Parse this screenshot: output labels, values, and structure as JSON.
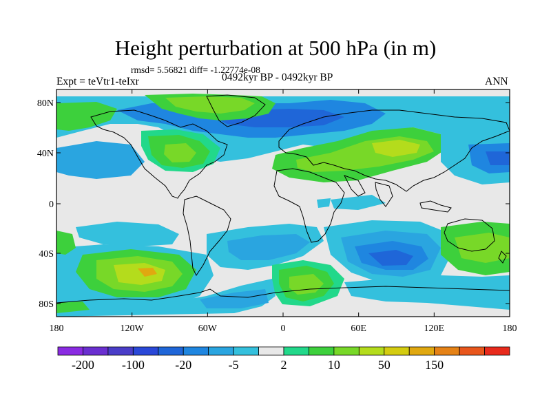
{
  "header": {
    "title": "Height perturbation at 500 hPa (in m)",
    "stats": "rmsd= 5.56821 diff= -1.22774e-08",
    "experiment": "Expt = teVtr1-teIxr",
    "period": "0492kyr BP - 0492kyr BP",
    "season": "ANN"
  },
  "axes": {
    "lon_ticks": [
      "180",
      "120W",
      "60W",
      "0",
      "60E",
      "120E",
      "180"
    ],
    "lat_ticks": [
      "80N",
      "40N",
      "0",
      "40S",
      "80S"
    ]
  },
  "colorbar": {
    "colors": [
      "#8a2be2",
      "#6a2fd0",
      "#4a3dc8",
      "#2a48d8",
      "#1f66d8",
      "#1f86e0",
      "#2aa5e0",
      "#34c0dd",
      "#e8e8e8",
      "#22d88a",
      "#3dd03c",
      "#78d828",
      "#b4dc1c",
      "#d4cc10",
      "#e0a810",
      "#e58216",
      "#e8561c",
      "#e82a1c"
    ],
    "labels": [
      "-200",
      "-100",
      "-20",
      "-5",
      "2",
      "10",
      "50",
      "150"
    ]
  },
  "map": {
    "background": "#e8e8e8",
    "colors": {
      "light_blue": "#34c0dd",
      "mid_blue": "#2aa5e0",
      "blue": "#1f86e0",
      "dark_blue": "#1f66d8",
      "green": "#3dd03c",
      "light_green": "#78d828",
      "yellow_green": "#b4dc1c",
      "teal": "#22d88a",
      "orange": "#e0a810"
    }
  }
}
